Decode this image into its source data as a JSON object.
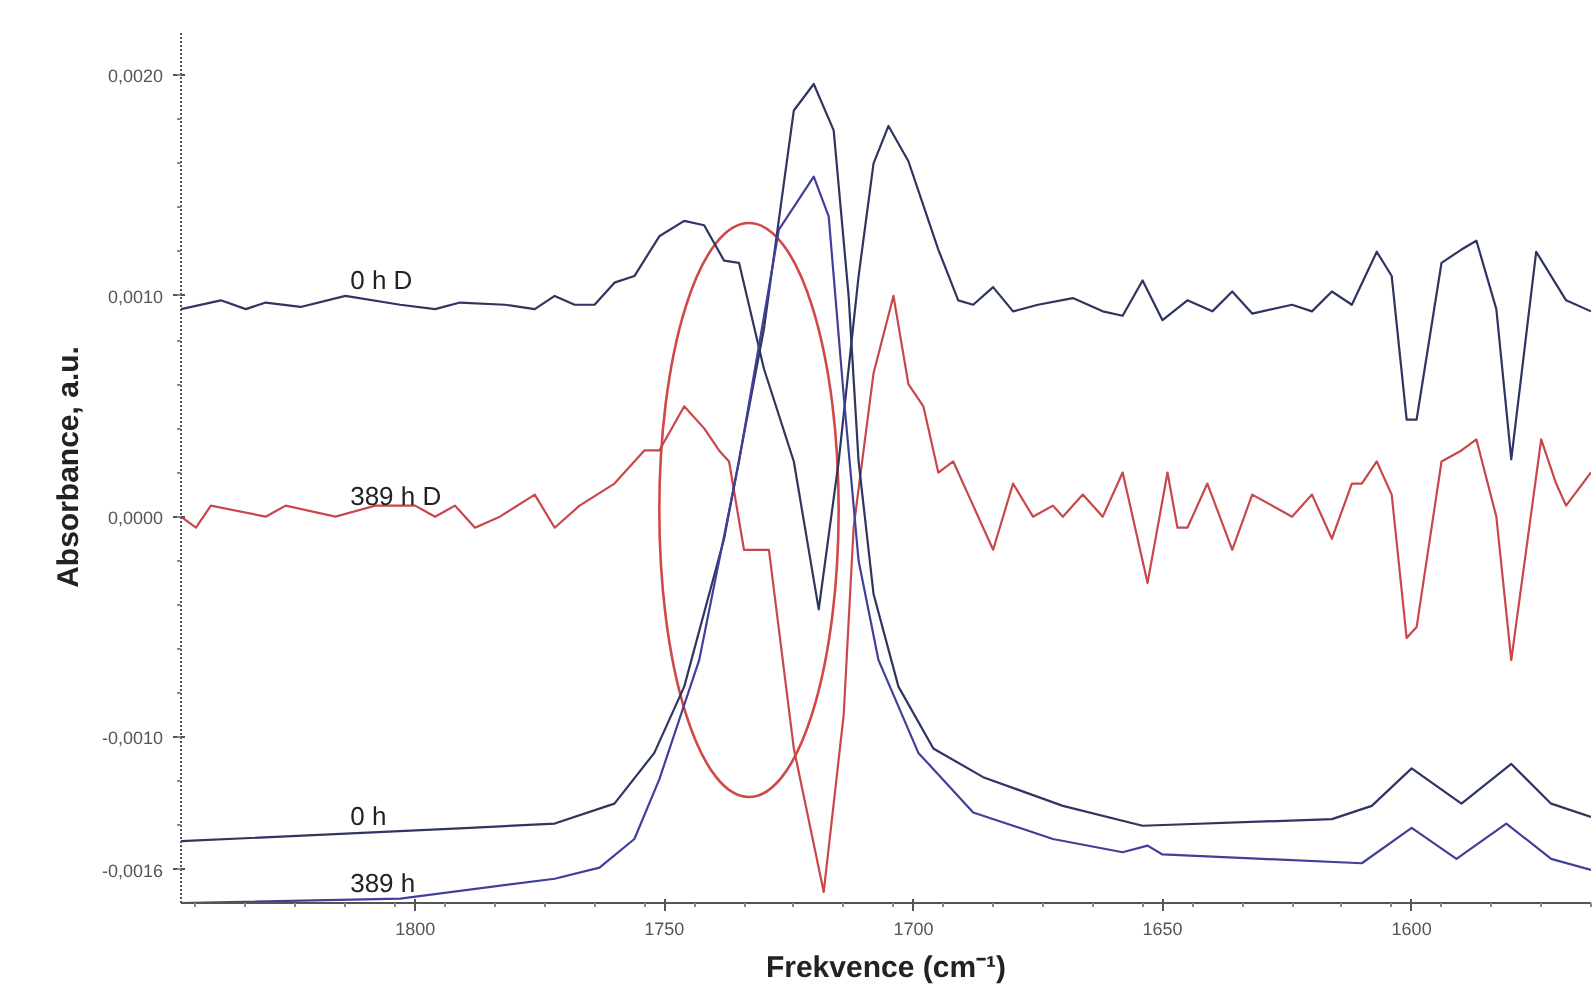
{
  "chart_data": {
    "type": "line",
    "xlabel": "Frekvence (cm⁻¹)",
    "ylabel": "Absorbance, a.u.",
    "xlim": [
      1847,
      1564
    ],
    "ylim": [
      -0.00175,
      0.0022
    ],
    "xticks": [
      1800,
      1750,
      1700,
      1650,
      1600
    ],
    "yticks": [
      {
        "value": 0.002,
        "label": "0,0020"
      },
      {
        "value": 0.001,
        "label": "0,0010"
      },
      {
        "value": 0,
        "label": "0,0000"
      },
      {
        "value": -0.001,
        "label": "-0,0010"
      },
      {
        "value": -0.0016,
        "label": "-0,0016"
      }
    ],
    "grid": false,
    "marker": "none",
    "line_style": "solid",
    "series": [
      {
        "name": "0 h D",
        "color": "#2e3560",
        "x": [
          1847,
          1839,
          1834,
          1830,
          1823,
          1814,
          1803,
          1796,
          1791,
          1782,
          1776,
          1772,
          1768,
          1764,
          1760,
          1756,
          1751,
          1746,
          1742,
          1738,
          1735,
          1730,
          1724,
          1719,
          1715,
          1711,
          1708,
          1705,
          1701,
          1695,
          1691,
          1688,
          1684,
          1680,
          1675,
          1668,
          1662,
          1658,
          1654,
          1650,
          1645,
          1640,
          1636,
          1632,
          1624,
          1620,
          1616,
          1612,
          1607,
          1604,
          1601,
          1599,
          1594,
          1590,
          1587,
          1583,
          1580,
          1575,
          1569,
          1564
        ],
        "values": [
          0.00094,
          0.00098,
          0.00094,
          0.00097,
          0.00095,
          0.001,
          0.00096,
          0.00094,
          0.00097,
          0.00096,
          0.00094,
          0.001,
          0.00096,
          0.00096,
          0.00106,
          0.00109,
          0.00127,
          0.00134,
          0.00132,
          0.00116,
          0.00115,
          0.00067,
          0.00025,
          -0.00042,
          0.00025,
          0.00109,
          0.0016,
          0.00177,
          0.00161,
          0.00121,
          0.00098,
          0.00096,
          0.00104,
          0.00093,
          0.00096,
          0.00099,
          0.00093,
          0.00091,
          0.00107,
          0.00089,
          0.00098,
          0.00093,
          0.00102,
          0.00092,
          0.00096,
          0.00093,
          0.00102,
          0.00096,
          0.0012,
          0.00109,
          0.00044,
          0.00044,
          0.00115,
          0.00121,
          0.00125,
          0.00094,
          0.00026,
          0.0012,
          0.00098,
          0.00093
        ]
      },
      {
        "name": "389 h D",
        "color": "#c8474a",
        "x": [
          1847,
          1844,
          1841,
          1830,
          1826,
          1816,
          1808,
          1800,
          1796,
          1792,
          1788,
          1783,
          1776,
          1772,
          1767,
          1760,
          1754,
          1751,
          1746,
          1742,
          1739,
          1737,
          1734,
          1729,
          1724,
          1718,
          1714,
          1712,
          1708,
          1704,
          1701,
          1698,
          1695,
          1692,
          1688,
          1684,
          1680,
          1676,
          1672,
          1670,
          1666,
          1662,
          1658,
          1653,
          1649,
          1647,
          1645,
          1641,
          1636,
          1632,
          1624,
          1620,
          1616,
          1612,
          1610,
          1607,
          1604,
          1601,
          1599,
          1594,
          1590,
          1587,
          1583,
          1580,
          1574,
          1571,
          1569,
          1564
        ],
        "values": [
          0,
          -5e-05,
          5e-05,
          0,
          5e-05,
          0,
          5e-05,
          5e-05,
          0,
          5e-05,
          -5e-05,
          0,
          0.0001,
          -5e-05,
          5e-05,
          0.00015,
          0.0003,
          0.0003,
          0.0005,
          0.0004,
          0.0003,
          0.00025,
          -0.00015,
          -0.00015,
          -0.00105,
          -0.0017,
          -0.0009,
          -5e-05,
          0.00065,
          0.001,
          0.0006,
          0.0005,
          0.0002,
          0.00025,
          5e-05,
          -0.00015,
          0.00015,
          0,
          5e-05,
          0,
          0.0001,
          0,
          0.0002,
          -0.0003,
          0.0002,
          -5e-05,
          -5e-05,
          0.00015,
          -0.00015,
          0.0001,
          0,
          0.0001,
          -0.0001,
          0.00015,
          0.00015,
          0.00025,
          0.0001,
          -0.00055,
          -0.0005,
          0.00025,
          0.0003,
          0.00035,
          0,
          -0.00065,
          0.00035,
          0.00015,
          5e-05,
          0.0002
        ]
      },
      {
        "name": "0 h",
        "color": "#2e3560",
        "x": [
          1847,
          1789,
          1772,
          1760,
          1752,
          1746,
          1738,
          1730,
          1724,
          1720,
          1716,
          1713,
          1711,
          1708,
          1703,
          1696,
          1686,
          1670,
          1654,
          1616,
          1608,
          1600,
          1590,
          1580,
          1572,
          1564
        ],
        "values": [
          -0.00147,
          -0.00141,
          -0.00139,
          -0.0013,
          -0.00107,
          -0.00077,
          -0.0001,
          0.00085,
          0.00184,
          0.00196,
          0.00175,
          0.001,
          0.00025,
          -0.00035,
          -0.00077,
          -0.00105,
          -0.00118,
          -0.00131,
          -0.0014,
          -0.00137,
          -0.00131,
          -0.00114,
          -0.0013,
          -0.00112,
          -0.0013,
          -0.00136
        ]
      },
      {
        "name": "389 h",
        "color": "#40409a",
        "x": [
          1847,
          1803,
          1772,
          1763,
          1756,
          1751,
          1743,
          1735,
          1727,
          1720,
          1717,
          1714,
          1711,
          1707,
          1699,
          1688,
          1672,
          1658,
          1653,
          1650,
          1630,
          1610,
          1600,
          1591,
          1581,
          1572,
          1564
        ],
        "values": [
          -0.00175,
          -0.00173,
          -0.00164,
          -0.00159,
          -0.00146,
          -0.00119,
          -0.00065,
          0.00025,
          0.0013,
          0.00154,
          0.00136,
          0.00055,
          -0.0002,
          -0.00065,
          -0.00107,
          -0.00134,
          -0.00146,
          -0.00152,
          -0.00149,
          -0.00153,
          -0.00155,
          -0.00157,
          -0.00141,
          -0.00155,
          -0.00139,
          -0.00155,
          -0.0016
        ]
      }
    ]
  }
}
